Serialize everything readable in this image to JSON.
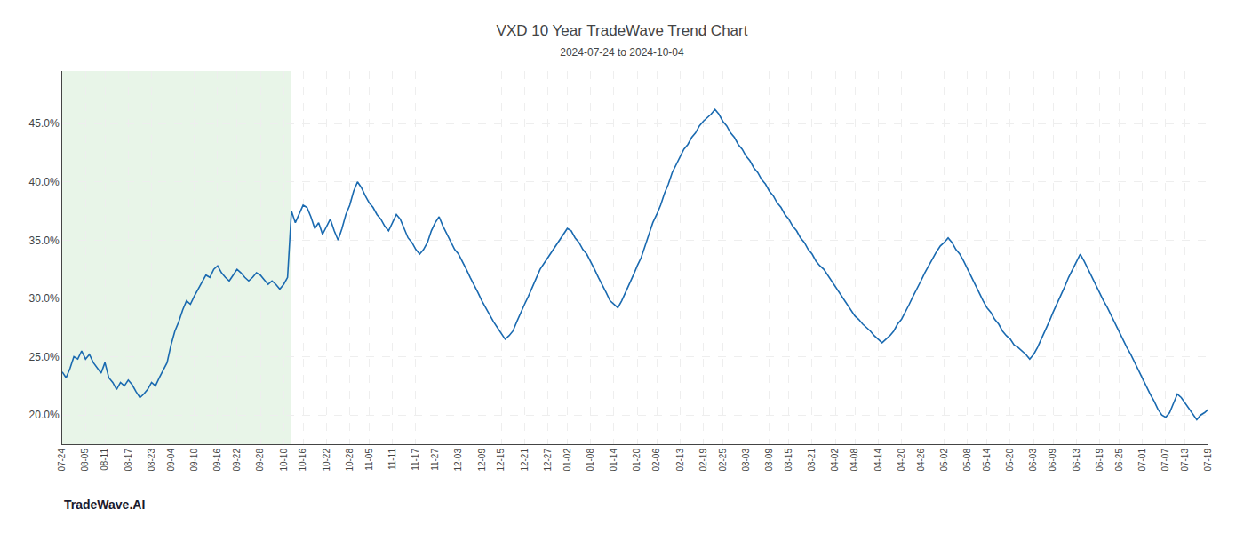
{
  "chart_data": {
    "type": "line",
    "title": "VXD 10 Year TradeWave Trend Chart",
    "subtitle": "2024-07-24 to 2024-10-04",
    "annotations": [
      "TradeWave.AI"
    ],
    "color": "#1a6ab0",
    "grid": true,
    "shade": {
      "start": 0,
      "end": 59,
      "color": "#d6edd6"
    },
    "ylim": [
      0.175,
      0.495
    ],
    "yticks": [
      {
        "value": 0.2,
        "label": "20.0%"
      },
      {
        "value": 0.25,
        "label": "25.0%"
      },
      {
        "value": 0.3,
        "label": "30.0%"
      },
      {
        "value": 0.35,
        "label": "35.0%"
      },
      {
        "value": 0.4,
        "label": "40.0%"
      },
      {
        "value": 0.45,
        "label": "45.0%"
      }
    ],
    "categories": [
      "07-24",
      null,
      null,
      null,
      null,
      null,
      "08-05",
      null,
      null,
      null,
      null,
      "08-11",
      null,
      null,
      null,
      null,
      null,
      "08-17",
      null,
      null,
      null,
      null,
      null,
      "08-23",
      null,
      null,
      null,
      null,
      "09-04",
      null,
      null,
      null,
      null,
      null,
      "09-10",
      null,
      null,
      null,
      null,
      null,
      "09-16",
      null,
      null,
      null,
      null,
      "09-22",
      null,
      null,
      null,
      null,
      null,
      "09-28",
      null,
      null,
      null,
      null,
      null,
      "10-10",
      null,
      null,
      null,
      null,
      "10-16",
      null,
      null,
      null,
      null,
      null,
      "10-22",
      null,
      null,
      null,
      null,
      null,
      "10-28",
      null,
      null,
      null,
      null,
      "11-05",
      null,
      null,
      null,
      null,
      null,
      "11-11",
      null,
      null,
      null,
      null,
      null,
      "11-17",
      null,
      null,
      null,
      null,
      "11-27",
      null,
      null,
      null,
      null,
      null,
      "12-03",
      null,
      null,
      null,
      null,
      null,
      "12-09",
      null,
      null,
      null,
      null,
      "12-15",
      null,
      null,
      null,
      null,
      null,
      "12-21",
      null,
      null,
      null,
      null,
      null,
      "12-27",
      null,
      null,
      null,
      null,
      "01-02",
      null,
      null,
      null,
      null,
      null,
      "01-08",
      null,
      null,
      null,
      null,
      null,
      "01-14",
      null,
      null,
      null,
      null,
      null,
      "01-20",
      null,
      null,
      null,
      null,
      "02-06",
      null,
      null,
      null,
      null,
      null,
      "02-13",
      null,
      null,
      null,
      null,
      null,
      "02-19",
      null,
      null,
      null,
      null,
      "02-25",
      null,
      null,
      null,
      null,
      null,
      "03-03",
      null,
      null,
      null,
      null,
      null,
      "03-09",
      null,
      null,
      null,
      null,
      "03-15",
      null,
      null,
      null,
      null,
      null,
      "03-21",
      null,
      null,
      null,
      null,
      null,
      "04-02",
      null,
      null,
      null,
      null,
      "04-08",
      null,
      null,
      null,
      null,
      null,
      "04-14",
      null,
      null,
      null,
      null,
      null,
      "04-20",
      null,
      null,
      null,
      null,
      "04-26",
      null,
      null,
      null,
      null,
      null,
      "05-02",
      null,
      null,
      null,
      null,
      null,
      "05-08",
      null,
      null,
      null,
      null,
      "05-14",
      null,
      null,
      null,
      null,
      null,
      "05-20",
      null,
      null,
      null,
      null,
      null,
      "06-03",
      null,
      null,
      null,
      null,
      "06-09",
      null,
      null,
      null,
      null,
      null,
      "06-13",
      null,
      null,
      null,
      null,
      null,
      "06-19",
      null,
      null,
      null,
      null,
      "06-25",
      null,
      null,
      null,
      null,
      null,
      "07-01",
      null,
      null,
      null,
      null,
      null,
      "07-07",
      null,
      null,
      null,
      null,
      "07-13",
      null,
      null,
      null,
      null,
      null,
      "07-19"
    ],
    "values": [
      0.237,
      0.232,
      0.24,
      0.25,
      0.248,
      0.255,
      0.248,
      0.252,
      0.245,
      0.24,
      0.236,
      0.245,
      0.232,
      0.228,
      0.222,
      0.228,
      0.225,
      0.23,
      0.226,
      0.22,
      0.215,
      0.218,
      0.222,
      0.228,
      0.225,
      0.232,
      0.238,
      0.245,
      0.26,
      0.272,
      0.28,
      0.29,
      0.298,
      0.295,
      0.302,
      0.308,
      0.315,
      0.32,
      0.318,
      0.325,
      0.328,
      0.322,
      0.318,
      0.315,
      0.32,
      0.325,
      0.322,
      0.318,
      0.315,
      0.318,
      0.322,
      0.32,
      0.316,
      0.312,
      0.315,
      0.312,
      0.308,
      0.312,
      0.318,
      0.375,
      0.365,
      0.372,
      0.38,
      0.378,
      0.37,
      0.36,
      0.365,
      0.355,
      0.362,
      0.368,
      0.358,
      0.35,
      0.36,
      0.372,
      0.38,
      0.392,
      0.4,
      0.395,
      0.388,
      0.382,
      0.378,
      0.372,
      0.368,
      0.362,
      0.358,
      0.365,
      0.372,
      0.368,
      0.36,
      0.352,
      0.348,
      0.342,
      0.338,
      0.342,
      0.348,
      0.358,
      0.365,
      0.37,
      0.362,
      0.355,
      0.348,
      0.342,
      0.338,
      0.332,
      0.325,
      0.318,
      0.312,
      0.305,
      0.298,
      0.292,
      0.285,
      0.28,
      0.275,
      0.27,
      0.265,
      0.268,
      0.272,
      0.28,
      0.288,
      0.295,
      0.302,
      0.31,
      0.318,
      0.325,
      0.33,
      0.335,
      0.34,
      0.345,
      0.35,
      0.355,
      0.36,
      0.358,
      0.352,
      0.348,
      0.342,
      0.338,
      0.332,
      0.325,
      0.318,
      0.312,
      0.305,
      0.298,
      0.295,
      0.292,
      0.298,
      0.305,
      0.312,
      0.32,
      0.328,
      0.335,
      0.345,
      0.355,
      0.365,
      0.372,
      0.38,
      0.39,
      0.398,
      0.408,
      0.415,
      0.422,
      0.428,
      0.432,
      0.438,
      0.442,
      0.448,
      0.452,
      0.455,
      0.458,
      0.462,
      0.458,
      0.452,
      0.448,
      0.442,
      0.438,
      0.432,
      0.428,
      0.422,
      0.418,
      0.412,
      0.408,
      0.402,
      0.398,
      0.392,
      0.388,
      0.382,
      0.378,
      0.372,
      0.368,
      0.362,
      0.358,
      0.352,
      0.348,
      0.342,
      0.338,
      0.332,
      0.328,
      0.325,
      0.32,
      0.315,
      0.31,
      0.305,
      0.3,
      0.295,
      0.29,
      0.285,
      0.282,
      0.278,
      0.275,
      0.272,
      0.268,
      0.265,
      0.262,
      0.265,
      0.268,
      0.272,
      0.278,
      0.282,
      0.288,
      0.295,
      0.302,
      0.308,
      0.315,
      0.322,
      0.328,
      0.335,
      0.34,
      0.345,
      0.348,
      0.352,
      0.348,
      0.342,
      0.338,
      0.332,
      0.325,
      0.318,
      0.312,
      0.305,
      0.298,
      0.292,
      0.288,
      0.282,
      0.278,
      0.272,
      0.268,
      0.265,
      0.26,
      0.258,
      0.255,
      0.252,
      0.248,
      0.252,
      0.258,
      0.265,
      0.272,
      0.28,
      0.288,
      0.295,
      0.302,
      0.31,
      0.318,
      0.325,
      0.332,
      0.338,
      0.332,
      0.325,
      0.318,
      0.312,
      0.305,
      0.298,
      0.292,
      0.285,
      0.278,
      0.272,
      0.265,
      0.258,
      0.252,
      0.245,
      0.238,
      0.232,
      0.225,
      0.218,
      0.212,
      0.205,
      0.2,
      0.198,
      0.202,
      0.21,
      0.218,
      0.215,
      0.21,
      0.205,
      0.2,
      0.196,
      0.2,
      0.202,
      0.205
    ]
  }
}
